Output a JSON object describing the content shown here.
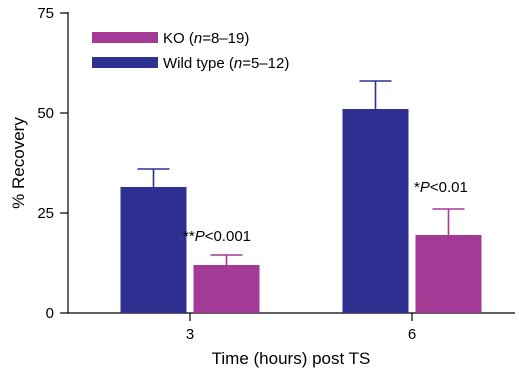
{
  "chart_data": {
    "type": "bar",
    "categories": [
      "3",
      "6"
    ],
    "xlabel": "Time (hours) post TS",
    "ylabel": "% Recovery",
    "ylim": [
      0,
      75
    ],
    "yticks": [
      "0",
      "25",
      "50",
      "75"
    ],
    "series": [
      {
        "key": "wt",
        "legend_prefix": "Wild type (",
        "legend_n_italic": "n",
        "legend_suffix": "=5–12)",
        "color": "#2e3192",
        "values": [
          31.5,
          51
        ],
        "errors": [
          4.5,
          7
        ]
      },
      {
        "key": "ko",
        "legend_prefix": "KO (",
        "legend_n_italic": "n",
        "legend_suffix": "=8–19)",
        "color": "#a23a96",
        "values": [
          12,
          19.5
        ],
        "errors": [
          2.5,
          6.5
        ]
      }
    ],
    "annotations": [
      {
        "stars": "**",
        "p": "P",
        "rest": "<0.001"
      },
      {
        "stars": "*",
        "p": "P",
        "rest": "<0.01"
      }
    ]
  }
}
